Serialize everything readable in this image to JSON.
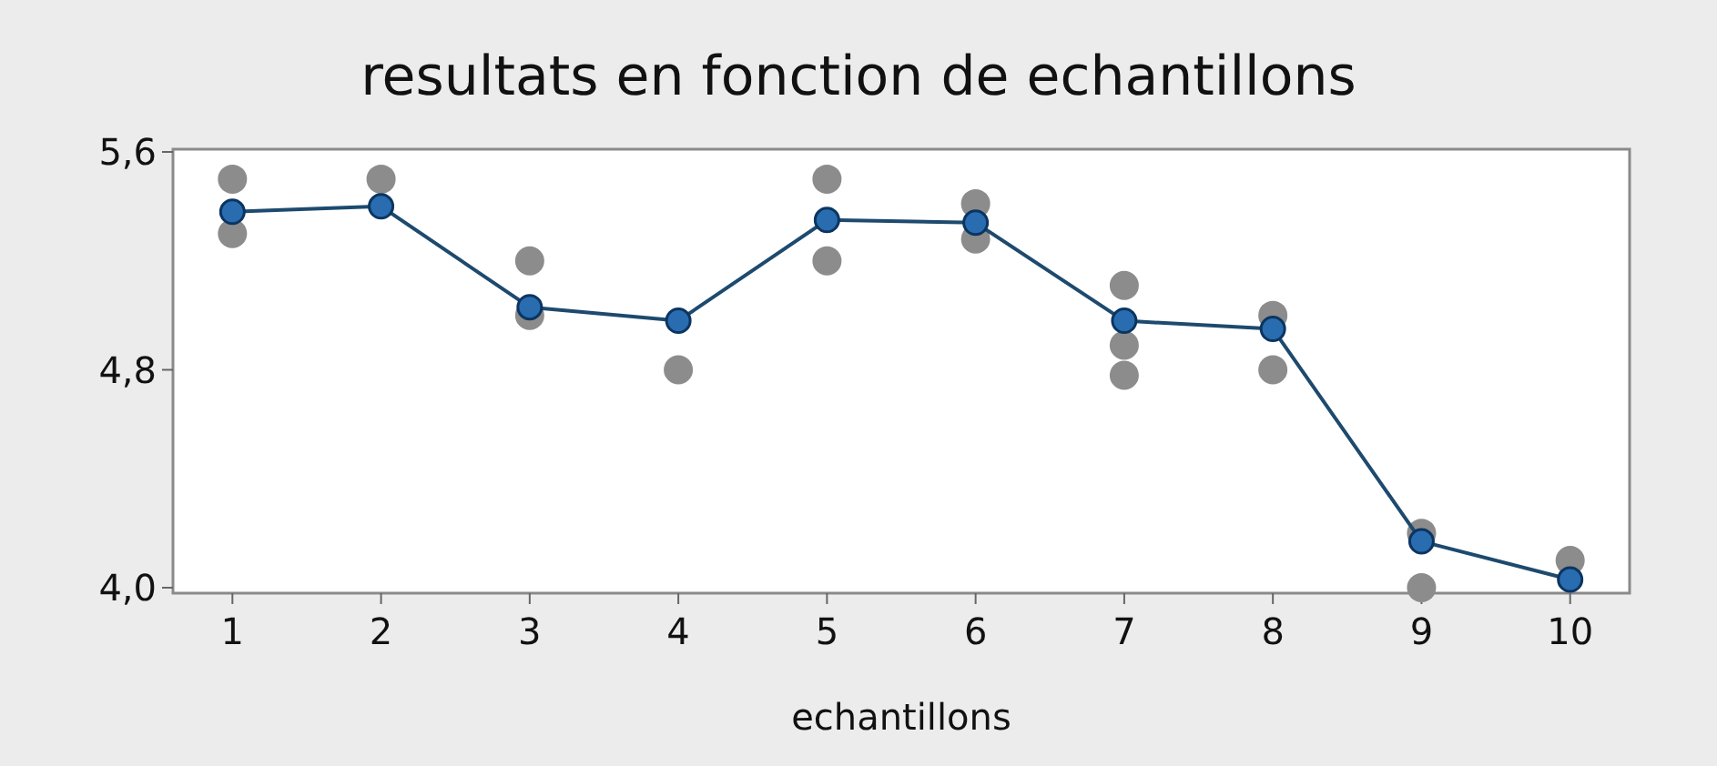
{
  "chart_data": {
    "type": "line",
    "title": "resultats en fonction de echantillons",
    "xlabel": "echantillons",
    "categories": [
      "1",
      "2",
      "3",
      "4",
      "5",
      "6",
      "7",
      "8",
      "9",
      "10"
    ],
    "series": [
      {
        "type": "scatter",
        "color": "#8c8c8c",
        "marker": "circle",
        "x": [
          "1",
          "1",
          "2",
          "3",
          "3",
          "4",
          "5",
          "5",
          "6",
          "6",
          "7",
          "7",
          "7",
          "8",
          "8",
          "9",
          "9",
          "10"
        ],
        "values": [
          5.5,
          5.3,
          5.5,
          5.2,
          5.0,
          4.8,
          5.5,
          5.2,
          5.41,
          5.28,
          5.11,
          4.89,
          4.78,
          5.0,
          4.8,
          4.2,
          4.0,
          4.1
        ]
      },
      {
        "color": "#2a6cb0",
        "marker": "circle",
        "values": [
          5.38,
          5.4,
          5.03,
          4.98,
          5.35,
          5.34,
          4.98,
          4.95,
          4.17,
          4.03
        ]
      }
    ],
    "ylim": [
      3.98,
      5.61
    ],
    "yticks": [
      {
        "value": 4.0,
        "label": "4,0"
      },
      {
        "value": 4.8,
        "label": "4,8"
      },
      {
        "value": 5.6,
        "label": "5,6"
      }
    ],
    "grid": false
  }
}
